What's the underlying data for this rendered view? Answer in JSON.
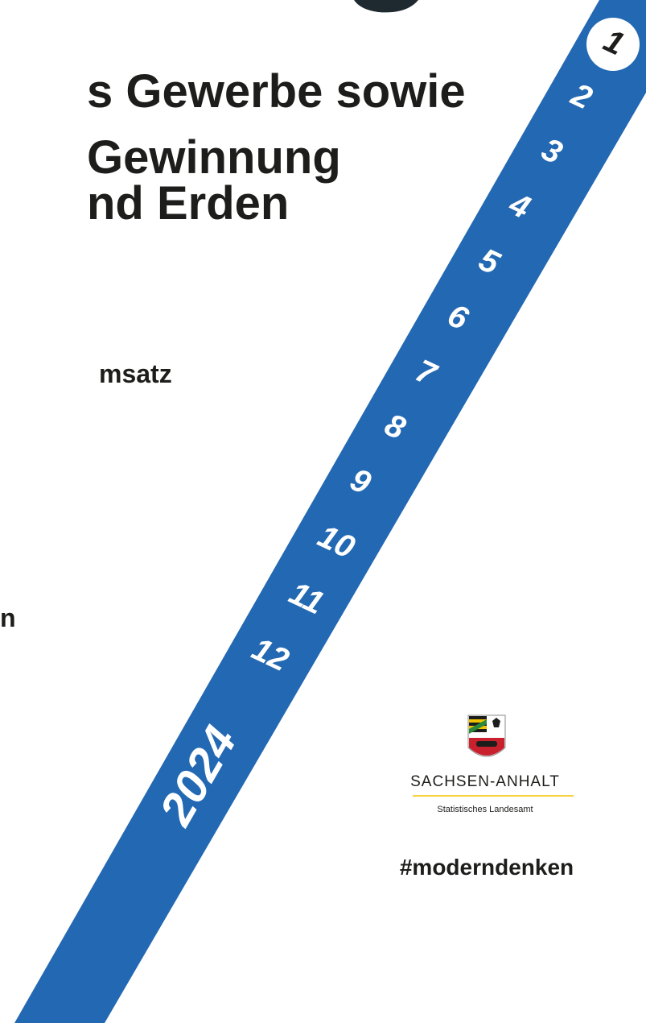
{
  "title_lines": [
    "s Gewerbe sowie",
    "Gewinnung",
    "nd Erden"
  ],
  "subtitle": "msatz",
  "fragment": "n",
  "months": [
    "1",
    "2",
    "3",
    "4",
    "5",
    "6",
    "7",
    "8",
    "9",
    "10",
    "11",
    "12"
  ],
  "year": "2024",
  "logo": {
    "name": "SACHSEN-ANHALT",
    "subtitle": "Statistisches Landesamt"
  },
  "hashtag": "#moderndenken"
}
